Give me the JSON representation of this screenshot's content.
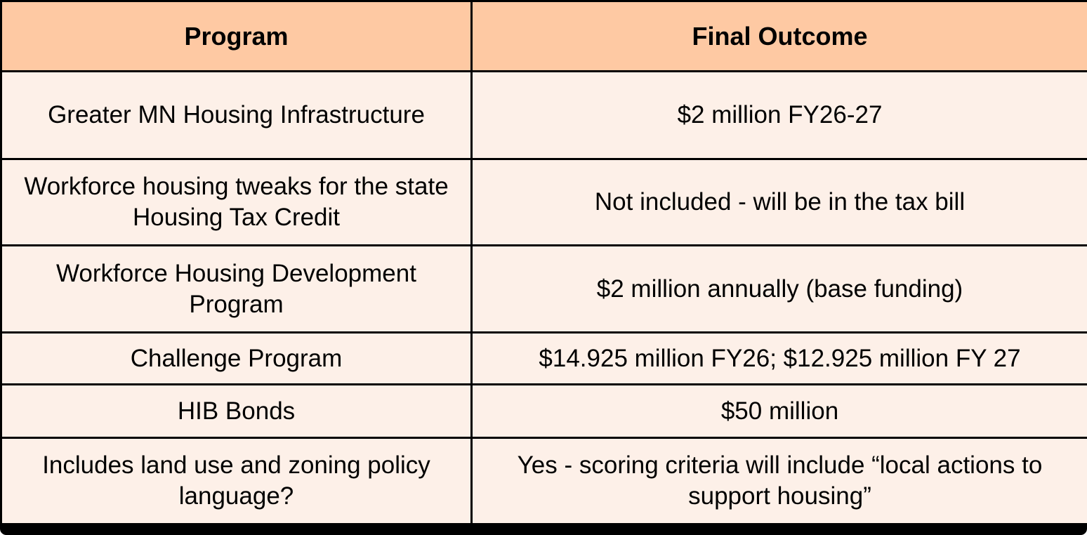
{
  "table": {
    "columns": [
      {
        "label": "Program"
      },
      {
        "label": "Final Outcome"
      }
    ],
    "rows": [
      {
        "program": "Greater MN Housing Infrastructure",
        "outcome": "$2 million FY26-27"
      },
      {
        "program": "Workforce housing tweaks for the state Housing Tax Credit",
        "outcome": "Not included - will be in the tax bill"
      },
      {
        "program": "Workforce Housing Development Program",
        "outcome": "$2 million annually (base funding)"
      },
      {
        "program": "Challenge Program",
        "outcome": "$14.925 million FY26; $12.925 million FY 27"
      },
      {
        "program": "HIB Bonds",
        "outcome": "$50 million"
      },
      {
        "program": "Includes land use and zoning policy language?",
        "outcome": "Yes - scoring criteria will include “local actions to support housing”"
      }
    ],
    "colors": {
      "header_bg": "#FEC9A3",
      "row_bg": "#FDF0E8",
      "border": "#000000"
    }
  }
}
